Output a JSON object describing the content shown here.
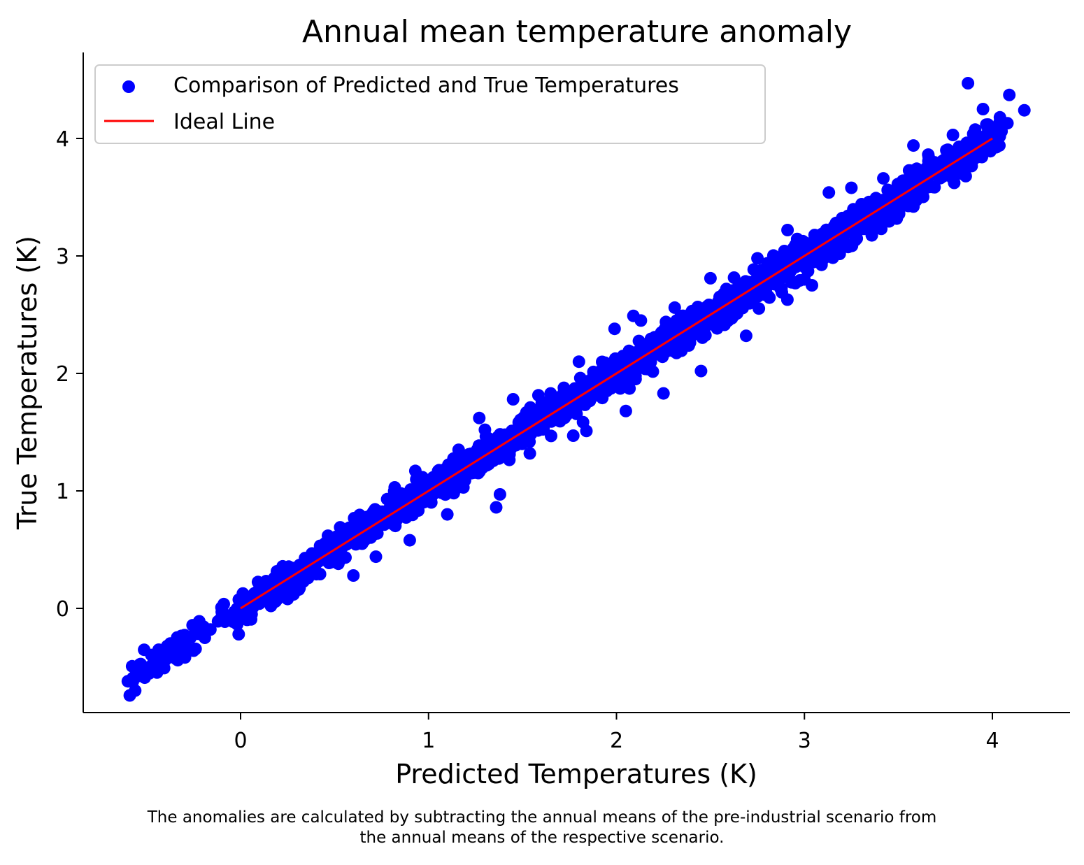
{
  "chart_data": {
    "type": "scatter",
    "title": "Annual mean temperature anomaly",
    "xlabel": "Predicted Temperatures (K)",
    "ylabel": "True Temperatures (K)",
    "xlim": [
      -0.84,
      4.42
    ],
    "ylim": [
      -0.88,
      4.73
    ],
    "xticks": [
      0,
      1,
      2,
      3,
      4
    ],
    "yticks": [
      0,
      1,
      2,
      3,
      4
    ],
    "grid": false,
    "legend_position": "top-left",
    "series": [
      {
        "name": "Comparison of Predicted and True Temperatures",
        "kind": "scatter",
        "color": "#0000ff",
        "points_sample": [
          [
            -0.6,
            -0.62
          ],
          [
            -0.57,
            -0.6
          ],
          [
            -0.53,
            -0.53
          ],
          [
            -0.51,
            -0.59
          ],
          [
            -0.46,
            -0.48
          ],
          [
            -0.43,
            -0.41
          ],
          [
            -0.4,
            -0.44
          ],
          [
            -0.39,
            -0.32
          ],
          [
            -0.3,
            -0.4
          ],
          [
            -0.25,
            -0.36
          ],
          [
            -0.24,
            -0.19
          ],
          [
            -0.22,
            -0.11
          ],
          [
            -0.2,
            -0.21
          ],
          [
            -0.19,
            -0.25
          ],
          [
            -0.12,
            -0.11
          ],
          [
            -0.1,
            -0.03
          ],
          [
            -0.04,
            -0.06
          ],
          [
            -0.01,
            -0.22
          ],
          [
            0.03,
            0.0
          ],
          [
            0.05,
            0.1
          ],
          [
            0.1,
            0.04
          ],
          [
            0.13,
            0.2
          ],
          [
            0.2,
            0.22
          ],
          [
            0.25,
            0.08
          ],
          [
            0.29,
            0.32
          ],
          [
            0.31,
            0.16
          ],
          [
            0.4,
            0.38
          ],
          [
            0.45,
            0.5
          ],
          [
            0.52,
            0.38
          ],
          [
            0.53,
            0.69
          ],
          [
            0.6,
            0.28
          ],
          [
            0.66,
            0.58
          ],
          [
            0.7,
            0.74
          ],
          [
            0.72,
            0.44
          ],
          [
            0.78,
            0.93
          ],
          [
            0.82,
            1.03
          ],
          [
            0.9,
            0.58
          ],
          [
            0.93,
            1.17
          ],
          [
            1.05,
            1.09
          ],
          [
            1.1,
            0.8
          ],
          [
            1.16,
            1.35
          ],
          [
            1.27,
            1.62
          ],
          [
            1.3,
            1.52
          ],
          [
            1.36,
            0.86
          ],
          [
            1.38,
            0.97
          ],
          [
            1.45,
            1.78
          ],
          [
            1.55,
            1.65
          ],
          [
            1.65,
            1.83
          ],
          [
            1.77,
            1.47
          ],
          [
            1.8,
            2.1
          ],
          [
            1.84,
            1.51
          ],
          [
            1.99,
            2.38
          ],
          [
            2.05,
            1.68
          ],
          [
            2.09,
            2.49
          ],
          [
            2.13,
            2.45
          ],
          [
            2.25,
            1.83
          ],
          [
            2.31,
            2.56
          ],
          [
            2.4,
            2.4
          ],
          [
            2.45,
            2.02
          ],
          [
            2.5,
            2.81
          ],
          [
            2.63,
            2.5
          ],
          [
            2.69,
            2.32
          ],
          [
            2.75,
            2.98
          ],
          [
            2.88,
            2.69
          ],
          [
            2.91,
            3.22
          ],
          [
            3.04,
            2.75
          ],
          [
            3.09,
            2.95
          ],
          [
            3.13,
            3.54
          ],
          [
            3.21,
            3.12
          ],
          [
            3.25,
            3.58
          ],
          [
            3.34,
            3.43
          ],
          [
            3.42,
            3.66
          ],
          [
            3.58,
            3.42
          ],
          [
            3.58,
            3.94
          ],
          [
            3.71,
            3.68
          ],
          [
            3.79,
            4.03
          ],
          [
            3.87,
            4.47
          ],
          [
            3.89,
            3.88
          ],
          [
            3.95,
            4.25
          ],
          [
            4.04,
            4.18
          ],
          [
            4.08,
            4.13
          ],
          [
            4.09,
            4.37
          ],
          [
            4.17,
            4.24
          ]
        ]
      },
      {
        "name": "Ideal Line",
        "kind": "line",
        "color": "#ff0000",
        "x": [
          0,
          4
        ],
        "y": [
          0,
          4
        ]
      }
    ]
  },
  "caption": {
    "line1": "The anomalies are calculated by subtracting the annual means of the pre-industrial scenario from",
    "line2": "the annual means of the respective scenario."
  }
}
